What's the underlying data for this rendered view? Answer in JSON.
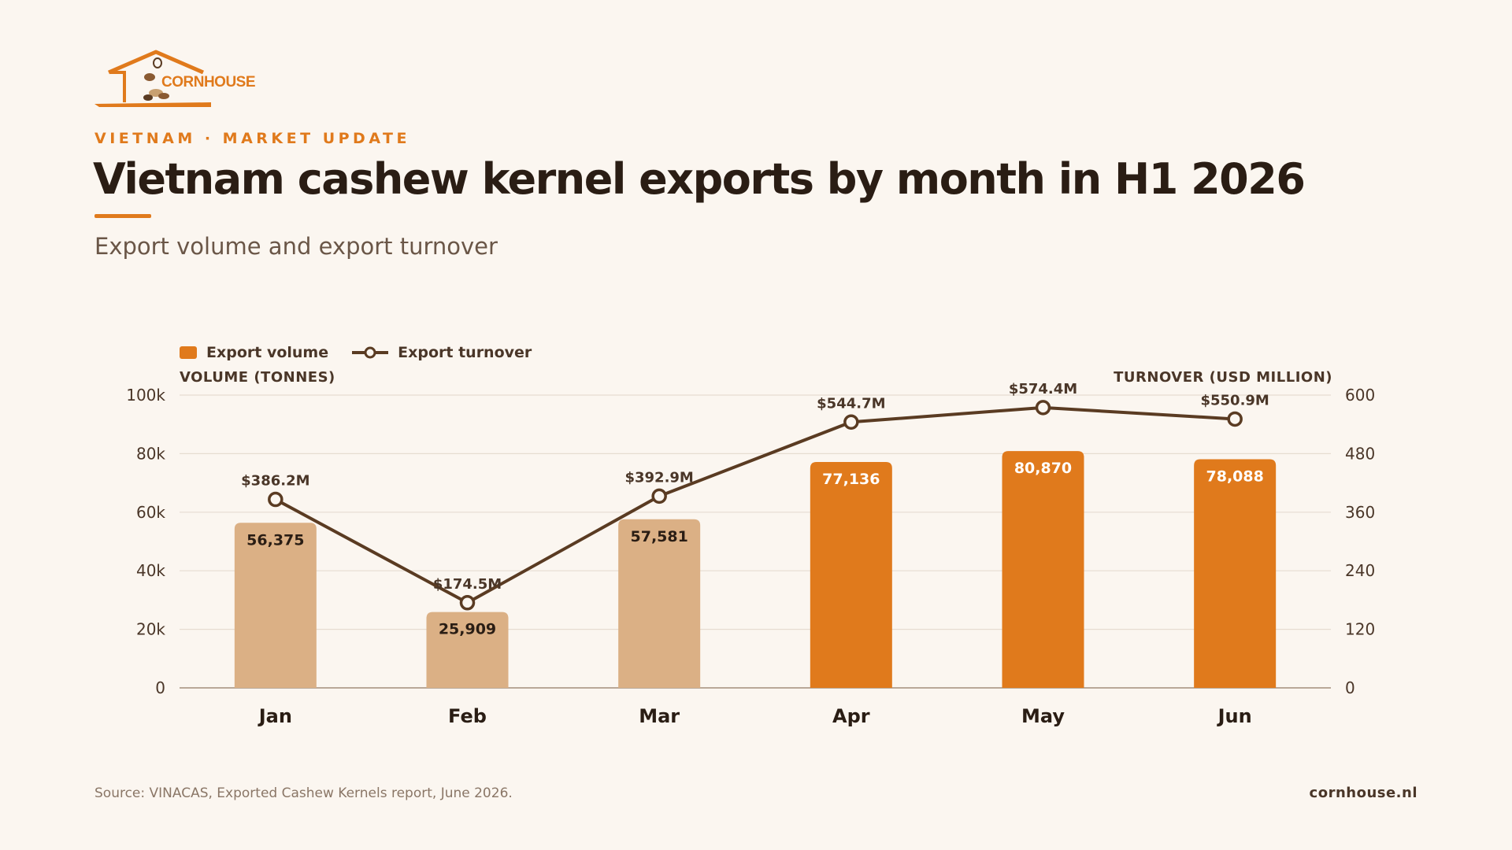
{
  "brand": {
    "logo_text": "CORNHOUSE",
    "logo_icon": "house-with-cashews-icon",
    "accent": "#E07A1C"
  },
  "header": {
    "kicker": "VIETNAM · MARKET UPDATE",
    "title": "Vietnam cashew kernel exports by month in H1 2026",
    "subtitle": "Export volume and export turnover"
  },
  "chart_data": {
    "type": "bar",
    "categories": [
      "Jan",
      "Feb",
      "Mar",
      "Apr",
      "May",
      "Jun"
    ],
    "series": [
      {
        "name": "Export volume",
        "type": "bar",
        "axis": "left",
        "values": [
          56375,
          25909,
          57581,
          77136,
          80870,
          78088
        ],
        "labels": [
          "56,375",
          "25,909",
          "57,581",
          "77,136",
          "80,870",
          "78,088"
        ],
        "colors": [
          "#DBB085",
          "#DBB085",
          "#DBB085",
          "#E07A1C",
          "#E07A1C",
          "#E07A1C"
        ]
      },
      {
        "name": "Export turnover",
        "type": "line",
        "axis": "right",
        "values": [
          386.2,
          174.5,
          392.9,
          544.7,
          574.4,
          550.9
        ],
        "labels": [
          "$386.2M",
          "$174.5M",
          "$392.9M",
          "$544.7M",
          "$574.4M",
          "$550.9M"
        ],
        "color": "#5A3B22"
      }
    ],
    "left_axis": {
      "title": "VOLUME (TONNES)",
      "range": [
        0,
        100000
      ],
      "ticks": [
        0,
        20000,
        40000,
        60000,
        80000,
        100000
      ],
      "tick_labels": [
        "0",
        "20k",
        "40k",
        "60k",
        "80k",
        "100k"
      ]
    },
    "right_axis": {
      "title": "TURNOVER (USD MILLION)",
      "range": [
        0,
        600
      ],
      "ticks": [
        0,
        120,
        240,
        360,
        480,
        600
      ],
      "tick_labels": [
        "0",
        "120",
        "240",
        "360",
        "480",
        "600"
      ]
    },
    "grid": true,
    "legend": "top-left"
  },
  "footer": {
    "source": "Source: VINACAS, Exported Cashew Kernels report, June 2026.",
    "site": "cornhouse.nl"
  }
}
